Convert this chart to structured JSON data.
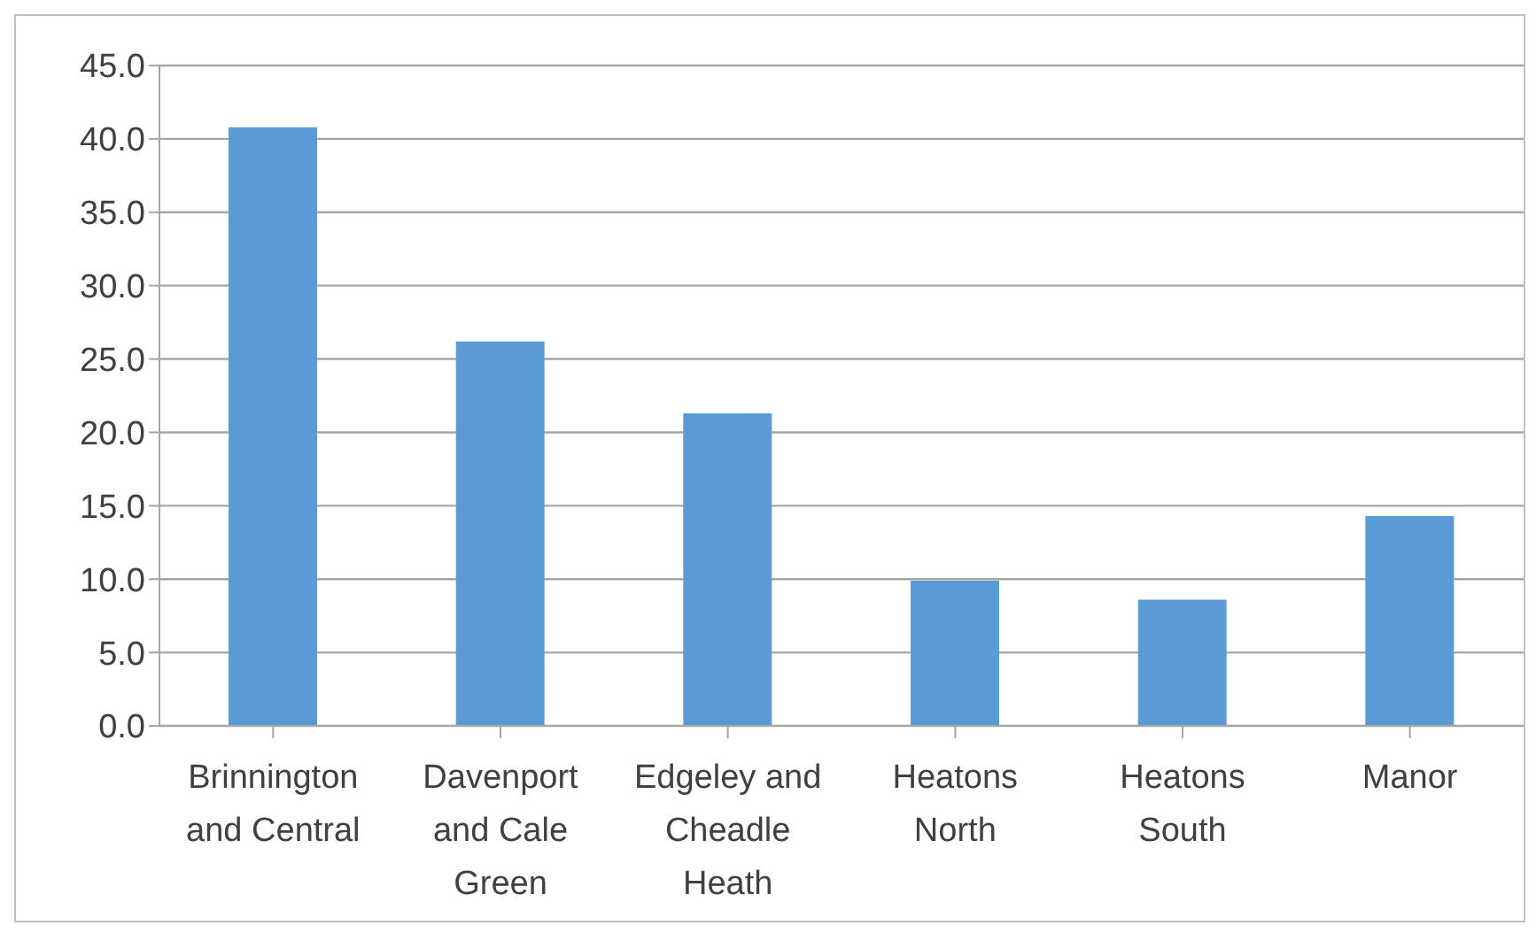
{
  "chart_data": {
    "type": "bar",
    "categories": [
      "Brinnington and Central",
      "Davenport and Cale Green",
      "Edgeley and Cheadle Heath",
      "Heatons North",
      "Heatons South",
      "Manor"
    ],
    "values": [
      40.8,
      26.2,
      21.3,
      9.9,
      8.6,
      14.3
    ],
    "color": "#5b9bd5",
    "ylim": [
      0,
      45
    ],
    "yticks": [
      {
        "value": 0,
        "label": "0.0"
      },
      {
        "value": 5,
        "label": "5.0"
      },
      {
        "value": 10,
        "label": "10.0"
      },
      {
        "value": 15,
        "label": "15.0"
      },
      {
        "value": 20,
        "label": "20.0"
      },
      {
        "value": 25,
        "label": "25.0"
      },
      {
        "value": 30,
        "label": "30.0"
      },
      {
        "value": 35,
        "label": "35.0"
      },
      {
        "value": 40,
        "label": "40.0"
      },
      {
        "value": 45,
        "label": "45.0"
      }
    ],
    "grid": "y",
    "legend": false
  }
}
